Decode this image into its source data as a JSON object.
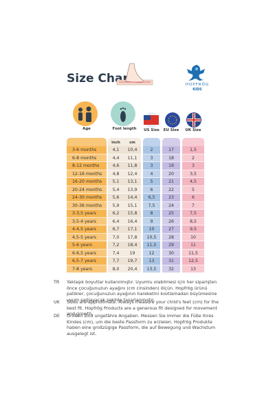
{
  "header": {
    "title": "Size Chart",
    "logo": "HOPFRÖG",
    "logo_sub": "KIDS"
  },
  "table": {
    "headers": [
      "Age",
      "Foot length",
      "US Size",
      "EU Size",
      "UK Size"
    ],
    "subheaders": [
      "inch",
      "cm"
    ],
    "rows": [
      [
        "3-6 months",
        "4,1",
        "10,4",
        "2",
        "17",
        "1,5"
      ],
      [
        "6-8 months",
        "4,4",
        "11,1",
        "3",
        "18",
        "2"
      ],
      [
        "8-12 months",
        "4,6",
        "11,8",
        "3",
        "19",
        "3"
      ],
      [
        "12-16 months",
        "4,8",
        "12,4",
        "4",
        "20",
        "3,5"
      ],
      [
        "16-20 months",
        "5,1",
        "13,1",
        "5",
        "21",
        "4,5"
      ],
      [
        "20-24 months",
        "5,4",
        "13,9",
        "6",
        "22",
        "5"
      ],
      [
        "24-30 months",
        "5,6",
        "14,4",
        "6,5",
        "23",
        "6"
      ],
      [
        "30-36 months",
        "5,9",
        "15,1",
        "7,5",
        "24",
        "7"
      ],
      [
        "3-3,5 years",
        "6,2",
        "15,8",
        "8",
        "25",
        "7,5"
      ],
      [
        "3,5-4 years",
        "6,4",
        "16,4",
        "9",
        "26",
        "8,5"
      ],
      [
        "4-4,5 years",
        "6,7",
        "17,1",
        "10",
        "27",
        "9,5"
      ],
      [
        "4,5-5 years",
        "7,0",
        "17,8",
        "10,5",
        "28",
        "10"
      ],
      [
        "5-6 years",
        "7,2",
        "18,4",
        "11,5",
        "29",
        "11"
      ],
      [
        "6-6,5 years",
        "7,4",
        "19",
        "12",
        "30",
        "11,5"
      ],
      [
        "6,5-7 years",
        "7,7",
        "19,7",
        "13",
        "31",
        "12,5"
      ],
      [
        "7-8 years",
        "8,0",
        "20,4",
        "13,5",
        "32",
        "13"
      ]
    ]
  },
  "notes": [
    {
      "code": "TR",
      "text": "Yaklaşık boyutlar kullanılmıştır. Uyumlu olabilmesi için her siparişten önce çocuğunuzun ayağını (cm cinsinden) ölçün. Hopfrög ürünü patikler, çocuğunuzun ayağının hareketini kısıtlamadan büyümesine uyum sağlayacak şekilde tasarlanmıştır."
    },
    {
      "code": "UK",
      "text": "Sizes are approximate. Always measure your child's feet (cm) for the best fit. Hopfrög Products are a generous fit designed for movement and growth."
    },
    {
      "code": "DE",
      "text": "Größen sind ungefähre Angaben. Messen Sie immer die Füße Ihres Kindes (cm), um die beste Passform zu erzielen. Hopfrög Produkte haben eine großzügige Passform, die auf Bewegung und Wachstum ausgelegt ist."
    }
  ]
}
